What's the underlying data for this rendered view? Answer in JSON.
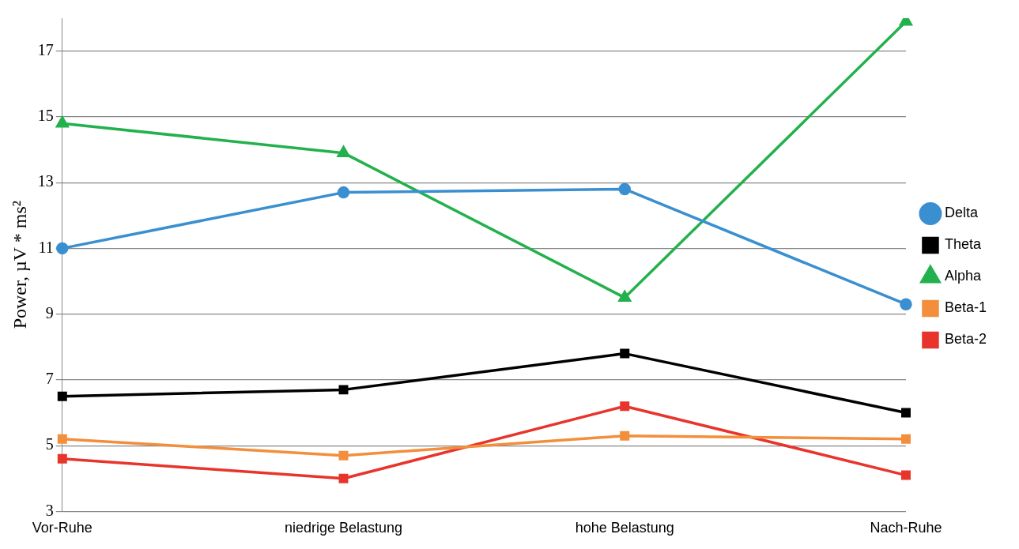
{
  "chart_data": {
    "type": "line",
    "ylabel": "Power, µV * ms²",
    "categories": [
      "Vor-Ruhe",
      "niedrige Belastung",
      "hohe Belastung",
      "Nach-Ruhe"
    ],
    "series": [
      {
        "name": "Delta",
        "color": "#3a8fd0",
        "marker": "circle",
        "values": [
          11.0,
          12.7,
          12.8,
          9.3
        ]
      },
      {
        "name": "Theta",
        "color": "#000000",
        "marker": "square",
        "values": [
          6.5,
          6.7,
          7.8,
          6.0
        ]
      },
      {
        "name": "Alpha",
        "color": "#23b14d",
        "marker": "triangle",
        "values": [
          14.8,
          13.9,
          9.5,
          17.9
        ]
      },
      {
        "name": "Beta-1",
        "color": "#f28e3c",
        "marker": "square",
        "values": [
          5.2,
          4.7,
          5.3,
          5.2
        ]
      },
      {
        "name": "Beta-2",
        "color": "#e8352c",
        "marker": "square",
        "values": [
          4.6,
          4.0,
          6.2,
          4.1
        ]
      }
    ],
    "ylim": [
      3,
      18
    ],
    "yticks": [
      3,
      5,
      7,
      9,
      11,
      13,
      15,
      17
    ],
    "grid": "y",
    "legend": "right",
    "line_style": "solid"
  }
}
